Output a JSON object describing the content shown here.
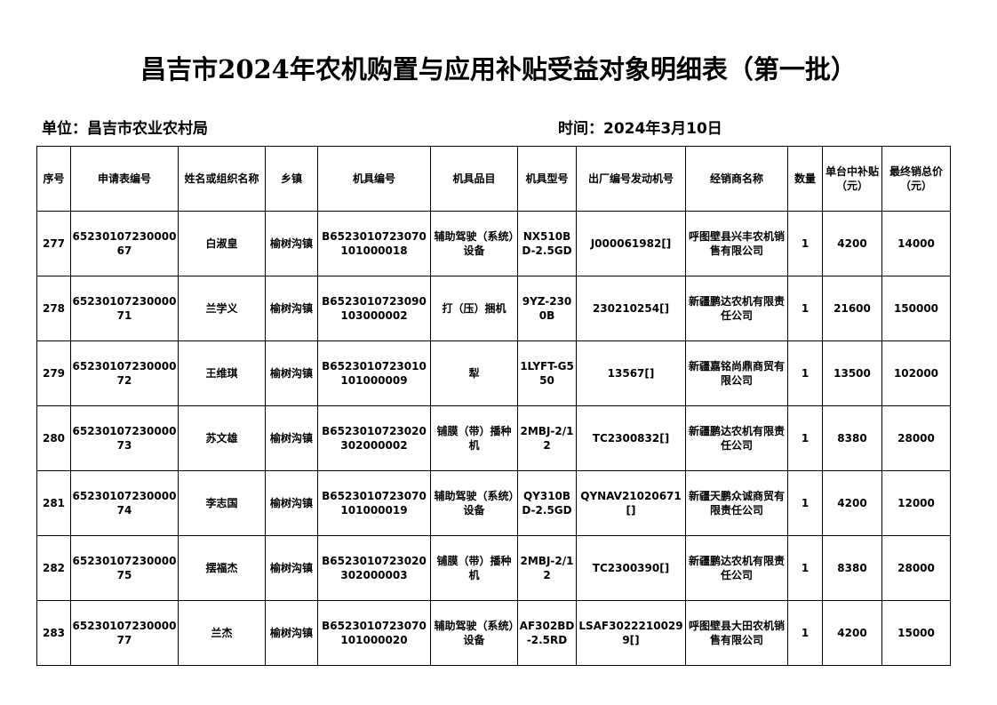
{
  "title": "昌吉市2024年农机购置与应用补贴受益对象明细表（第一批）",
  "unit": "单位：昌吉市农业农村局",
  "time": "时间：2024年3月10日",
  "table": {
    "headers": [
      "序号",
      "申请表编号",
      "姓名或组织名称",
      "乡镇",
      "机具编号",
      "机具品目",
      "机具型号",
      "出厂编号发动机号",
      "经销商名称",
      "数量",
      "单台中补贴（元）",
      "最终销总价（元）"
    ],
    "rows": [
      [
        "277",
        "6523010723000067",
        "白淑皇",
        "榆树沟镇",
        "B6523010723070101000018",
        "辅助驾驶（系统）设备",
        "NX510BD-2.5GD",
        "J000061982[]",
        "呼图壁县兴丰农机销售有限公司",
        "1",
        "4200",
        "14000"
      ],
      [
        "278",
        "6523010723000071",
        "兰学义",
        "榆树沟镇",
        "B6523010723090103000002",
        "打（压）捆机",
        "9YZ-2300B",
        "230210254[]",
        "新疆鹏达农机有限责任公司",
        "1",
        "21600",
        "150000"
      ],
      [
        "279",
        "6523010723000072",
        "王维琪",
        "榆树沟镇",
        "B6523010723010101000009",
        "犁",
        "1LYFT-G550",
        "13567[]",
        "新疆嘉铭尚鼎商贸有限公司",
        "1",
        "13500",
        "102000"
      ],
      [
        "280",
        "6523010723000073",
        "苏文雄",
        "榆树沟镇",
        "B6523010723020302000002",
        "铺膜（带）播种机",
        "2MBJ-2/12",
        "TC2300832[]",
        "新疆鹏达农机有限责任公司",
        "1",
        "8380",
        "28000"
      ],
      [
        "281",
        "6523010723000074",
        "李志国",
        "榆树沟镇",
        "B6523010723070101000019",
        "辅助驾驶（系统）设备",
        "QY310BD-2.5GD",
        "QYNAV21020671[]",
        "新疆天鹏众诚商贸有限责任公司",
        "1",
        "4200",
        "12000"
      ],
      [
        "282",
        "6523010723000075",
        "摆福杰",
        "榆树沟镇",
        "B6523010723020302000003",
        "铺膜（带）播种机",
        "2MBJ-2/12",
        "TC2300390[]",
        "新疆鹏达农机有限责任公司",
        "1",
        "8380",
        "28000"
      ],
      [
        "283",
        "6523010723000077",
        "兰杰",
        "榆树沟镇",
        "B6523010723070101000020",
        "辅助驾驶（系统）设备",
        "AF302BD-2.5RD",
        "LSAF30222100299[]",
        "呼图壁县大田农机销售有限公司",
        "1",
        "4200",
        "15000"
      ]
    ]
  }
}
